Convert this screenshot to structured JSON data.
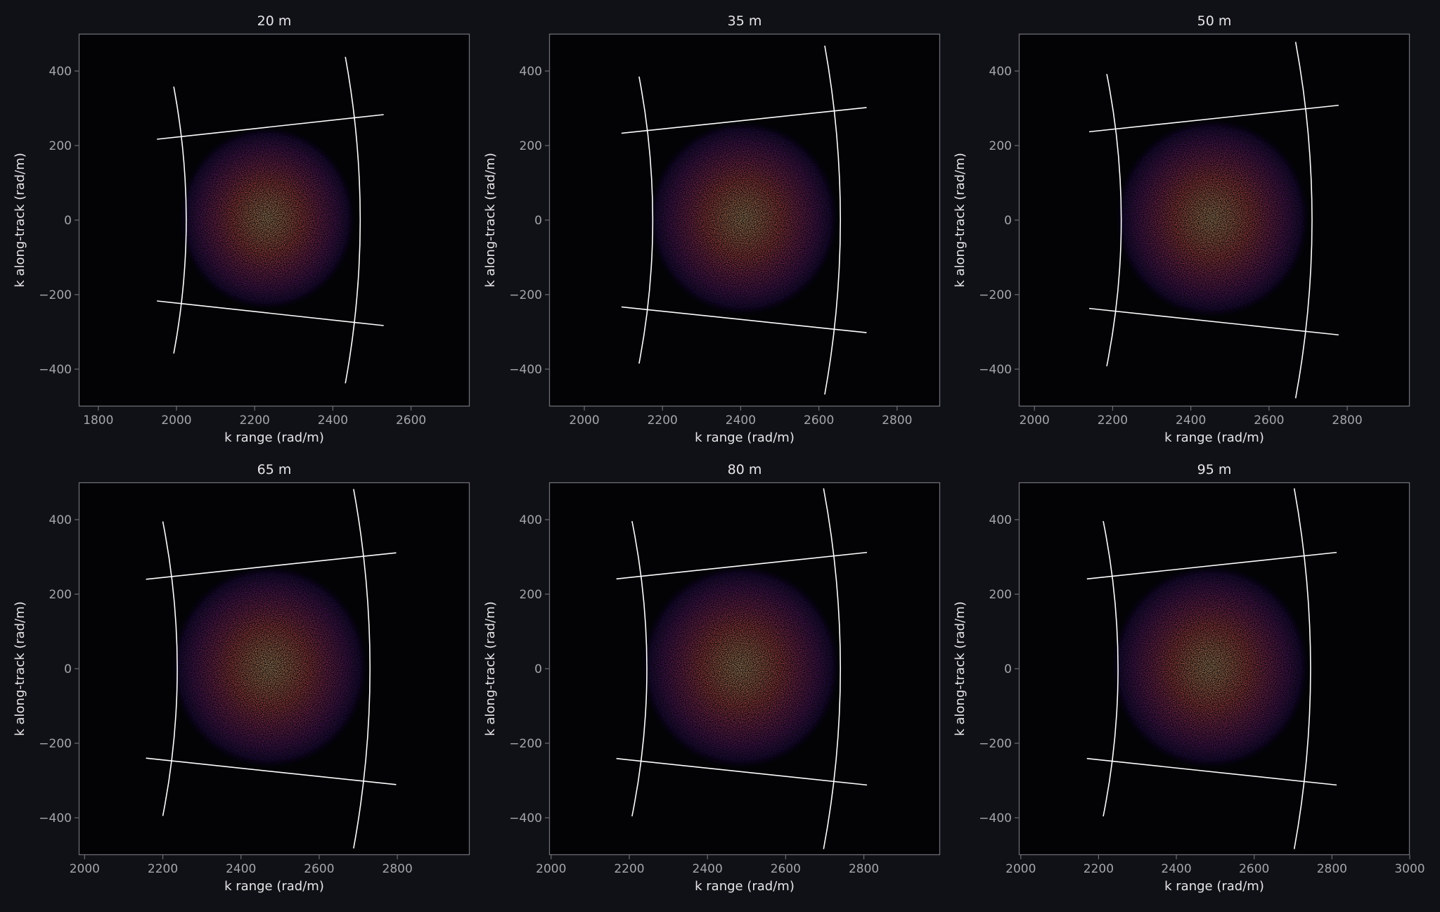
{
  "figure": {
    "background": "#101116",
    "axes_facecolor": "#030306",
    "spine_color": "#6b6d73",
    "tick_label_color": "#a4a6ab",
    "label_color": "#e6e6e8",
    "curve_color": "#ffffff",
    "colormap": "magma"
  },
  "chart_data": [
    {
      "type": "heatmap",
      "title": "20 m",
      "xlabel": "k range (rad/m)",
      "ylabel": "k along-track (rad/m)",
      "xlim": [
        1750,
        2750
      ],
      "ylim": [
        -500,
        500
      ],
      "xticks": [
        1800,
        2000,
        2200,
        2400,
        2600
      ],
      "yticks": [
        -400,
        -200,
        0,
        200,
        400
      ],
      "density_center": [
        2232,
        5
      ],
      "density_halfwidth": [
        195,
        212
      ],
      "footprint": {
        "top_line": [
          [
            1950,
            217
          ],
          [
            2530,
            283
          ]
        ],
        "bottom_line": [
          [
            1950,
            -217
          ],
          [
            2530,
            -283
          ]
        ],
        "inner_arc": {
          "top": [
            1993,
            358
          ],
          "mid": [
            2025,
            0
          ],
          "bottom": [
            1993,
            -358
          ]
        },
        "outer_arc": {
          "top": [
            2432,
            438
          ],
          "mid": [
            2470,
            0
          ],
          "bottom": [
            2432,
            -438
          ]
        }
      }
    },
    {
      "type": "heatmap",
      "title": "35 m",
      "xlabel": "k range (rad/m)",
      "ylabel": "k along-track (rad/m)",
      "xlim": [
        1910,
        2910
      ],
      "ylim": [
        -500,
        500
      ],
      "xticks": [
        2000,
        2200,
        2400,
        2600,
        2800
      ],
      "yticks": [
        -400,
        -200,
        0,
        200,
        400
      ],
      "density_center": [
        2407,
        5
      ],
      "density_halfwidth": [
        210,
        225
      ],
      "footprint": {
        "top_line": [
          [
            2095,
            233
          ],
          [
            2722,
            302
          ]
        ],
        "bottom_line": [
          [
            2095,
            -233
          ],
          [
            2722,
            -302
          ]
        ],
        "inner_arc": {
          "top": [
            2140,
            385
          ],
          "mid": [
            2175,
            0
          ],
          "bottom": [
            2140,
            -385
          ]
        },
        "outer_arc": {
          "top": [
            2615,
            468
          ],
          "mid": [
            2655,
            0
          ],
          "bottom": [
            2615,
            -468
          ]
        }
      }
    },
    {
      "type": "heatmap",
      "title": "50 m",
      "xlabel": "k range (rad/m)",
      "ylabel": "k along-track (rad/m)",
      "xlim": [
        1960,
        2960
      ],
      "ylim": [
        -500,
        500
      ],
      "xticks": [
        2000,
        2200,
        2400,
        2600,
        2800
      ],
      "yticks": [
        -400,
        -200,
        0,
        200,
        400
      ],
      "density_center": [
        2455,
        5
      ],
      "density_halfwidth": [
        215,
        230
      ],
      "footprint": {
        "top_line": [
          [
            2140,
            237
          ],
          [
            2778,
            308
          ]
        ],
        "bottom_line": [
          [
            2140,
            -237
          ],
          [
            2778,
            -308
          ]
        ],
        "inner_arc": {
          "top": [
            2185,
            392
          ],
          "mid": [
            2222,
            0
          ],
          "bottom": [
            2185,
            -392
          ]
        },
        "outer_arc": {
          "top": [
            2668,
            478
          ],
          "mid": [
            2710,
            0
          ],
          "bottom": [
            2668,
            -478
          ]
        }
      }
    },
    {
      "type": "heatmap",
      "title": "65 m",
      "xlabel": "k range (rad/m)",
      "ylabel": "k along-track (rad/m)",
      "xlim": [
        1985,
        2985
      ],
      "ylim": [
        -500,
        500
      ],
      "xticks": [
        2000,
        2200,
        2400,
        2600,
        2800
      ],
      "yticks": [
        -400,
        -200,
        0,
        200,
        400
      ],
      "density_center": [
        2473,
        5
      ],
      "density_halfwidth": [
        218,
        235
      ],
      "footprint": {
        "top_line": [
          [
            2157,
            240
          ],
          [
            2797,
            311
          ]
        ],
        "bottom_line": [
          [
            2157,
            -240
          ],
          [
            2797,
            -311
          ]
        ],
        "inner_arc": {
          "top": [
            2200,
            395
          ],
          "mid": [
            2237,
            0
          ],
          "bottom": [
            2200,
            -395
          ]
        },
        "outer_arc": {
          "top": [
            2688,
            482
          ],
          "mid": [
            2730,
            0
          ],
          "bottom": [
            2688,
            -482
          ]
        }
      }
    },
    {
      "type": "heatmap",
      "title": "80 m",
      "xlabel": "k range (rad/m)",
      "ylabel": "k along-track (rad/m)",
      "xlim": [
        1995,
        2995
      ],
      "ylim": [
        -500,
        500
      ],
      "xticks": [
        2000,
        2200,
        2400,
        2600,
        2800
      ],
      "yticks": [
        -400,
        -200,
        0,
        200,
        400
      ],
      "density_center": [
        2485,
        5
      ],
      "density_halfwidth": [
        220,
        236
      ],
      "footprint": {
        "top_line": [
          [
            2167,
            241
          ],
          [
            2808,
            312
          ]
        ],
        "bottom_line": [
          [
            2167,
            -241
          ],
          [
            2808,
            -312
          ]
        ],
        "inner_arc": {
          "top": [
            2207,
            396
          ],
          "mid": [
            2245,
            0
          ],
          "bottom": [
            2207,
            -396
          ]
        },
        "outer_arc": {
          "top": [
            2697,
            484
          ],
          "mid": [
            2740,
            0
          ],
          "bottom": [
            2697,
            -484
          ]
        }
      }
    },
    {
      "type": "heatmap",
      "title": "95 m",
      "xlabel": "k range (rad/m)",
      "ylabel": "k along-track (rad/m)",
      "xlim": [
        1995,
        3000
      ],
      "ylim": [
        -500,
        500
      ],
      "xticks": [
        2000,
        2200,
        2400,
        2600,
        2800,
        3000
      ],
      "yticks": [
        -400,
        -200,
        0,
        200,
        400
      ],
      "density_center": [
        2487,
        5
      ],
      "density_halfwidth": [
        220,
        236
      ],
      "footprint": {
        "top_line": [
          [
            2170,
            241
          ],
          [
            2812,
            312
          ]
        ],
        "bottom_line": [
          [
            2170,
            -241
          ],
          [
            2812,
            -312
          ]
        ],
        "inner_arc": {
          "top": [
            2212,
            396
          ],
          "mid": [
            2250,
            0
          ],
          "bottom": [
            2212,
            -396
          ]
        },
        "outer_arc": {
          "top": [
            2703,
            484
          ],
          "mid": [
            2745,
            0
          ],
          "bottom": [
            2703,
            -484
          ]
        }
      }
    }
  ]
}
